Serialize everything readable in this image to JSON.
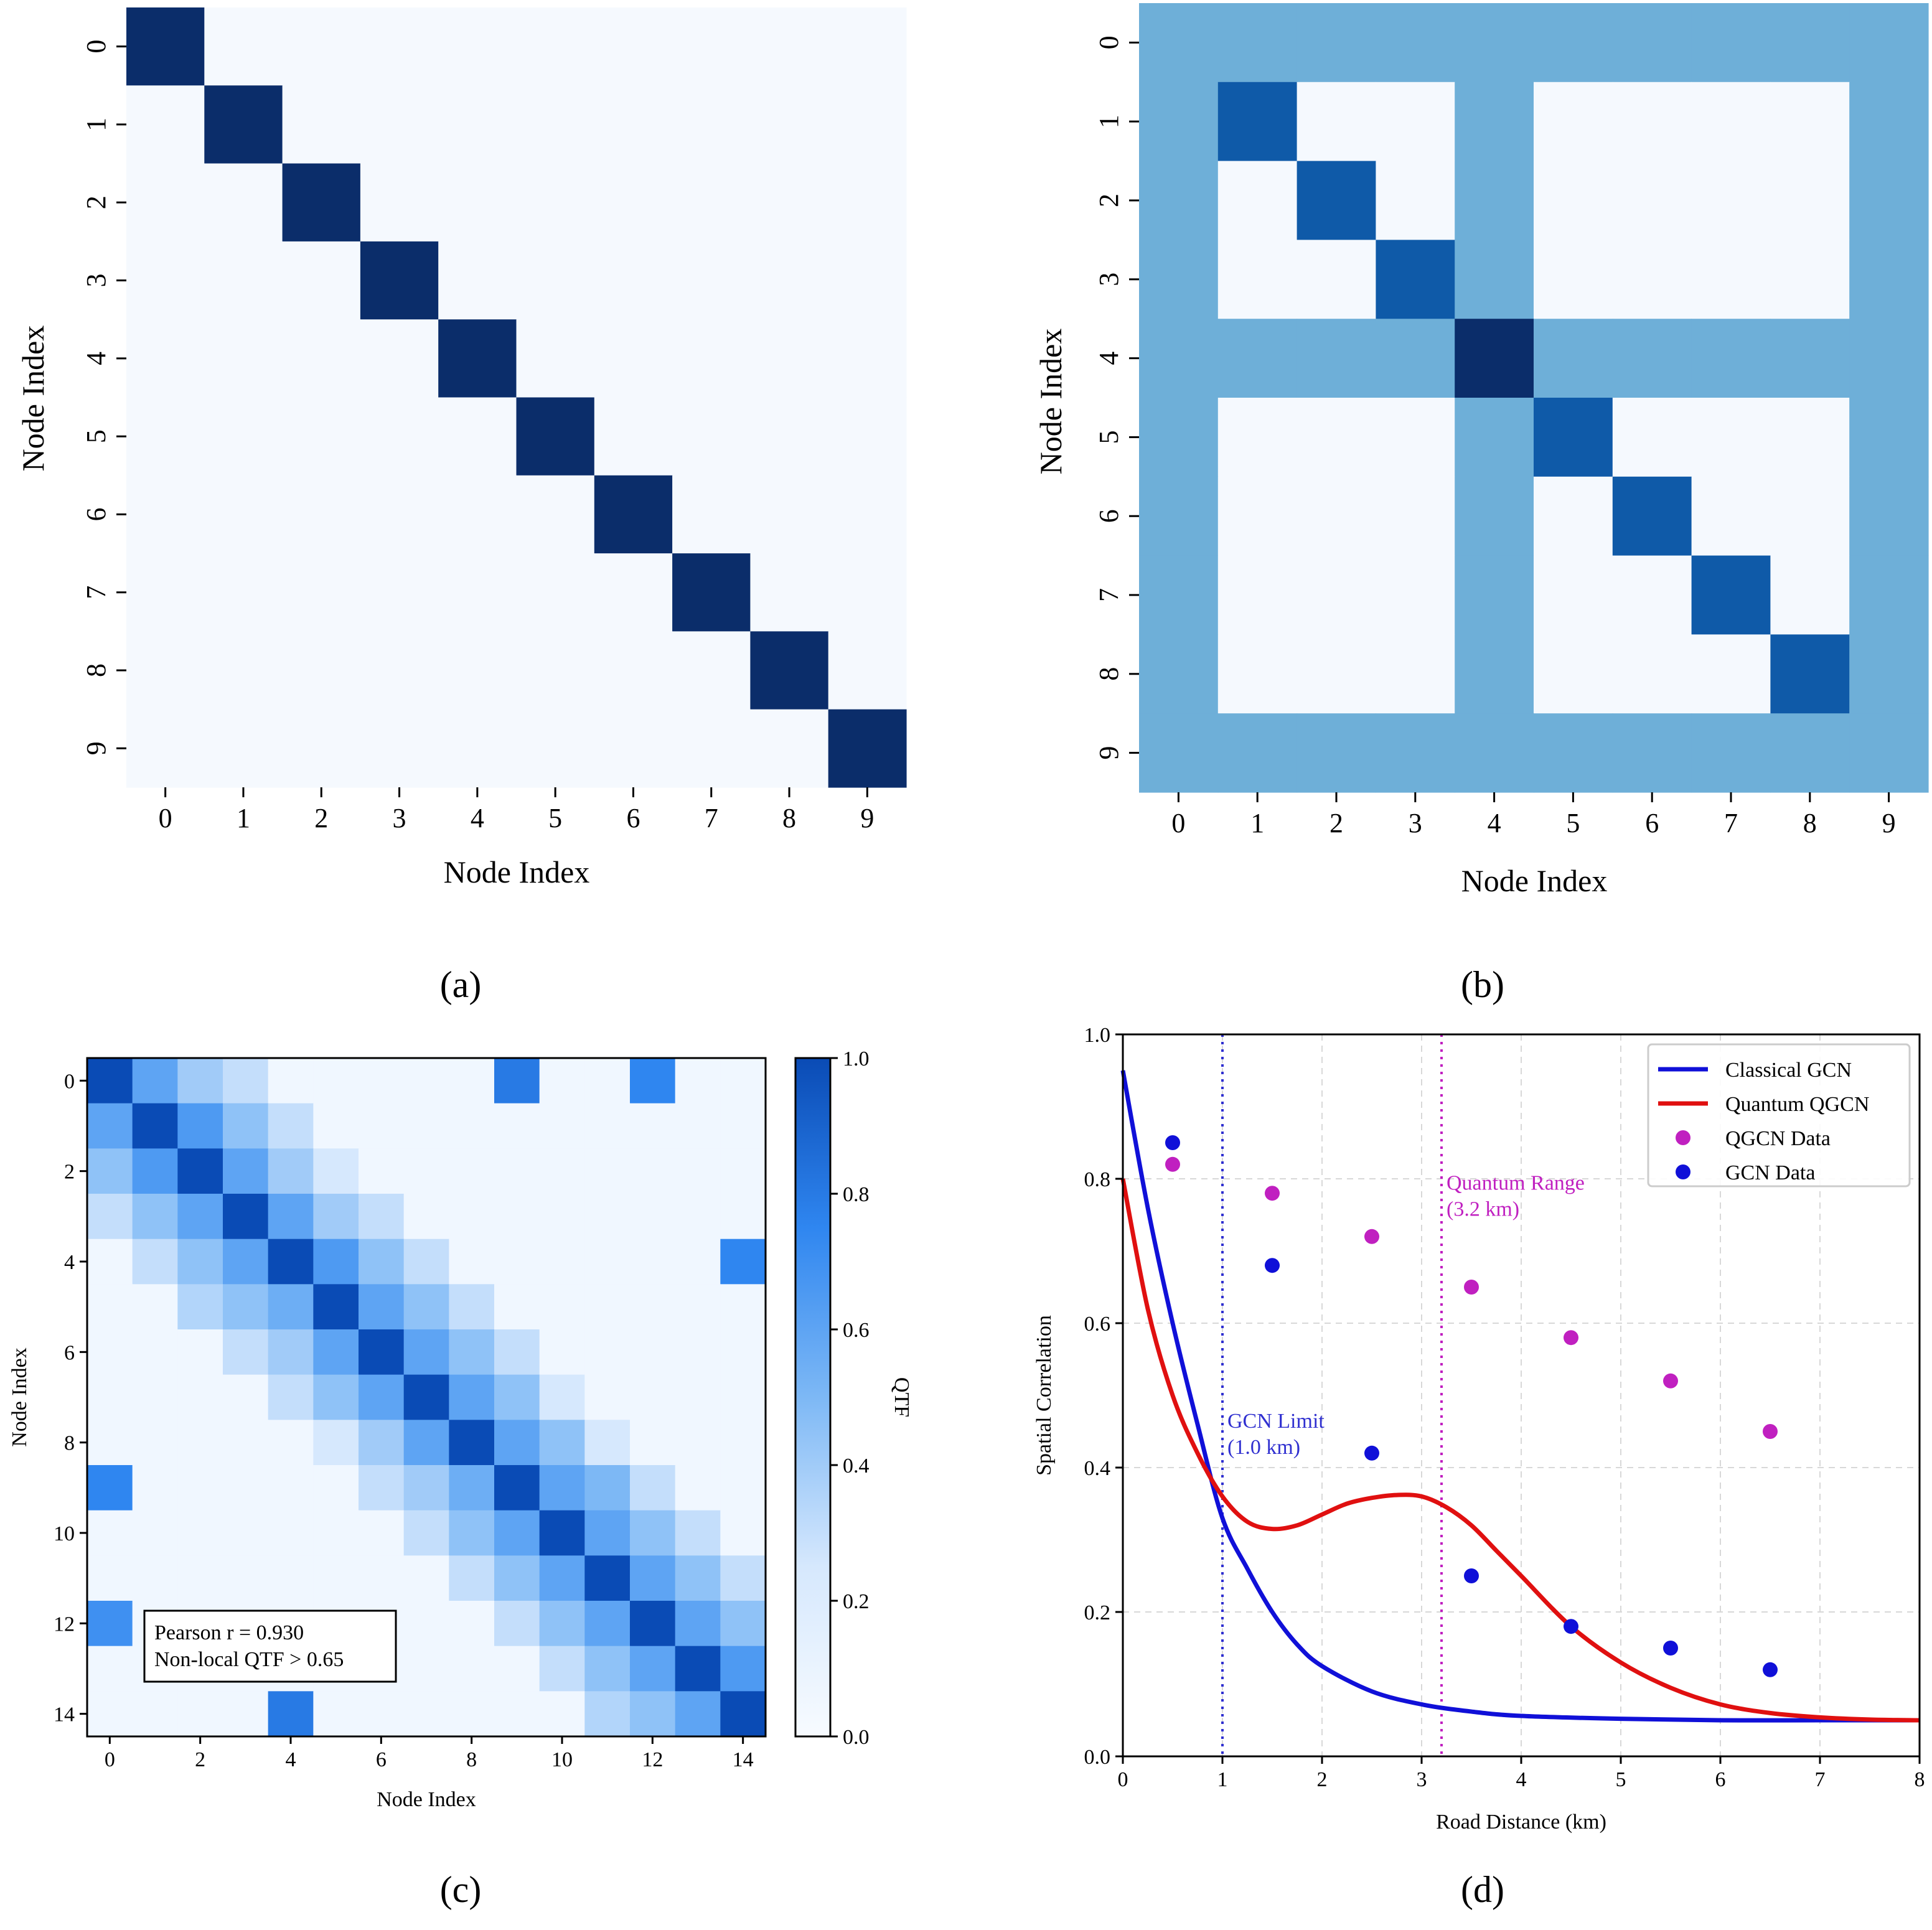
{
  "figure": {
    "panel_tags": [
      "(a)",
      "(b)",
      "(c)",
      "(d)"
    ]
  },
  "chart_data": [
    {
      "panel": "(a)",
      "type": "heatmap",
      "xlabel": "Node Index",
      "ylabel": "Node Index",
      "x_ticks": [
        "0",
        "1",
        "2",
        "3",
        "4",
        "5",
        "6",
        "7",
        "8",
        "9"
      ],
      "y_ticks": [
        "0",
        "1",
        "2",
        "3",
        "4",
        "5",
        "6",
        "7",
        "8",
        "9"
      ],
      "matrix": [
        [
          1,
          0,
          0,
          0,
          0,
          0,
          0,
          0,
          0,
          0
        ],
        [
          0,
          1,
          0,
          0,
          0,
          0,
          0,
          0,
          0,
          0
        ],
        [
          0,
          0,
          1,
          0,
          0,
          0,
          0,
          0,
          0,
          0
        ],
        [
          0,
          0,
          0,
          1,
          0,
          0,
          0,
          0,
          0,
          0
        ],
        [
          0,
          0,
          0,
          0,
          1,
          0,
          0,
          0,
          0,
          0
        ],
        [
          0,
          0,
          0,
          0,
          0,
          1,
          0,
          0,
          0,
          0
        ],
        [
          0,
          0,
          0,
          0,
          0,
          0,
          1,
          0,
          0,
          0
        ],
        [
          0,
          0,
          0,
          0,
          0,
          0,
          0,
          1,
          0,
          0
        ],
        [
          0,
          0,
          0,
          0,
          0,
          0,
          0,
          0,
          1,
          0
        ],
        [
          0,
          0,
          0,
          0,
          0,
          0,
          0,
          0,
          0,
          1
        ]
      ],
      "colorscale": "Blues",
      "vmin": 0,
      "vmax": 1
    },
    {
      "panel": "(b)",
      "type": "heatmap",
      "xlabel": "Node Index",
      "ylabel": "Node Index",
      "x_ticks": [
        "0",
        "1",
        "2",
        "3",
        "4",
        "5",
        "6",
        "7",
        "8",
        "9"
      ],
      "y_ticks": [
        "0",
        "1",
        "2",
        "3",
        "4",
        "5",
        "6",
        "7",
        "8",
        "9"
      ],
      "matrix": [
        [
          0.5,
          0.5,
          0.5,
          0.5,
          0.5,
          0.5,
          0.5,
          0.5,
          0.5,
          0.5
        ],
        [
          0.5,
          0.8,
          0,
          0,
          0.5,
          0,
          0,
          0,
          0,
          0.5
        ],
        [
          0.5,
          0,
          0.8,
          0,
          0.5,
          0,
          0,
          0,
          0,
          0.5
        ],
        [
          0.5,
          0,
          0,
          0.8,
          0.5,
          0,
          0,
          0,
          0,
          0.5
        ],
        [
          0.5,
          0.5,
          0.5,
          0.5,
          1,
          0.5,
          0.5,
          0.5,
          0.5,
          0.5
        ],
        [
          0.5,
          0,
          0,
          0,
          0.5,
          0.8,
          0,
          0,
          0,
          0.5
        ],
        [
          0.5,
          0,
          0,
          0,
          0.5,
          0,
          0.8,
          0,
          0,
          0.5
        ],
        [
          0.5,
          0,
          0,
          0,
          0.5,
          0,
          0,
          0.8,
          0,
          0.5
        ],
        [
          0.5,
          0,
          0,
          0,
          0.5,
          0,
          0,
          0,
          0.8,
          0.5
        ],
        [
          0.5,
          0.5,
          0.5,
          0.5,
          0.5,
          0.5,
          0.5,
          0.5,
          0.5,
          0.5
        ]
      ],
      "colorscale": "Blues",
      "vmin": 0,
      "vmax": 1
    },
    {
      "panel": "(c)",
      "type": "heatmap",
      "xlabel": "Node Index",
      "ylabel": "Node Index",
      "colorbar_label": "QTF",
      "colorbar_ticks": [
        "0.0",
        "0.2",
        "0.4",
        "0.6",
        "0.8",
        "1.0"
      ],
      "x_ticks": [
        "0",
        "2",
        "4",
        "6",
        "8",
        "10",
        "12",
        "14"
      ],
      "y_ticks": [
        "0",
        "2",
        "4",
        "6",
        "8",
        "10",
        "12",
        "14"
      ],
      "annotation_lines": [
        "Pearson r = 0.930",
        "Non-local QTF > 0.65"
      ],
      "vmin": 0,
      "vmax": 1,
      "matrix": [
        [
          1,
          0.6,
          0.4,
          0.3,
          0.05,
          0.05,
          0.05,
          0.05,
          0.05,
          0.8,
          0.05,
          0.05,
          0.75,
          0.05,
          0.05
        ],
        [
          0.6,
          1,
          0.65,
          0.45,
          0.3,
          0.05,
          0.05,
          0.05,
          0.05,
          0.05,
          0.05,
          0.05,
          0.05,
          0.05,
          0.05
        ],
        [
          0.45,
          0.65,
          1,
          0.6,
          0.4,
          0.25,
          0.05,
          0.05,
          0.05,
          0.05,
          0.05,
          0.05,
          0.05,
          0.05,
          0.05
        ],
        [
          0.3,
          0.45,
          0.6,
          1,
          0.6,
          0.4,
          0.3,
          0.05,
          0.05,
          0.05,
          0.05,
          0.05,
          0.05,
          0.05,
          0.05
        ],
        [
          0.05,
          0.3,
          0.45,
          0.6,
          1,
          0.65,
          0.45,
          0.3,
          0.05,
          0.05,
          0.05,
          0.05,
          0.05,
          0.05,
          0.75
        ],
        [
          0.05,
          0.05,
          0.35,
          0.45,
          0.55,
          1,
          0.6,
          0.45,
          0.3,
          0.05,
          0.05,
          0.05,
          0.05,
          0.05,
          0.05
        ],
        [
          0.05,
          0.05,
          0.05,
          0.3,
          0.4,
          0.6,
          1,
          0.6,
          0.45,
          0.3,
          0.05,
          0.05,
          0.05,
          0.05,
          0.05
        ],
        [
          0.05,
          0.05,
          0.05,
          0.05,
          0.3,
          0.45,
          0.6,
          1,
          0.6,
          0.45,
          0.25,
          0.05,
          0.05,
          0.05,
          0.05
        ],
        [
          0.05,
          0.05,
          0.05,
          0.05,
          0.05,
          0.25,
          0.4,
          0.6,
          1,
          0.6,
          0.45,
          0.25,
          0.05,
          0.05,
          0.05
        ],
        [
          0.75,
          0.05,
          0.05,
          0.05,
          0.05,
          0.05,
          0.3,
          0.4,
          0.55,
          1,
          0.6,
          0.5,
          0.3,
          0.05,
          0.05
        ],
        [
          0.05,
          0.05,
          0.05,
          0.05,
          0.05,
          0.05,
          0.05,
          0.3,
          0.45,
          0.6,
          1,
          0.6,
          0.45,
          0.3,
          0.05
        ],
        [
          0.05,
          0.05,
          0.05,
          0.05,
          0.05,
          0.05,
          0.05,
          0.05,
          0.3,
          0.45,
          0.6,
          1,
          0.6,
          0.45,
          0.3
        ],
        [
          0.7,
          0.05,
          0.05,
          0.05,
          0.05,
          0.05,
          0.05,
          0.05,
          0.05,
          0.3,
          0.45,
          0.6,
          1,
          0.6,
          0.45
        ],
        [
          0.05,
          0.05,
          0.05,
          0.05,
          0.05,
          0.05,
          0.05,
          0.05,
          0.05,
          0.05,
          0.3,
          0.45,
          0.6,
          1,
          0.65
        ],
        [
          0.05,
          0.05,
          0.05,
          0.05,
          0.8,
          0.05,
          0.05,
          0.05,
          0.05,
          0.05,
          0.05,
          0.35,
          0.45,
          0.6,
          1
        ]
      ]
    },
    {
      "panel": "(d)",
      "type": "line",
      "xlabel": "Road Distance (km)",
      "ylabel": "Spatial Correlation",
      "xlim": [
        0,
        8
      ],
      "ylim": [
        0,
        1
      ],
      "x_ticks": [
        "0",
        "1",
        "2",
        "3",
        "4",
        "5",
        "6",
        "7",
        "8"
      ],
      "y_ticks": [
        "0.0",
        "0.2",
        "0.4",
        "0.6",
        "0.8",
        "1.0"
      ],
      "grid": true,
      "legend_position": "top-right",
      "series": [
        {
          "name": "Classical GCN",
          "kind": "line",
          "color": "#1010d8",
          "x": [
            0,
            0.25,
            0.5,
            0.75,
            1,
            1.25,
            1.5,
            1.75,
            2,
            2.5,
            3,
            3.5,
            4,
            5,
            6,
            7,
            8
          ],
          "y": [
            0.95,
            0.76,
            0.6,
            0.46,
            0.33,
            0.26,
            0.2,
            0.155,
            0.125,
            0.09,
            0.072,
            0.062,
            0.056,
            0.052,
            0.05,
            0.05,
            0.05
          ]
        },
        {
          "name": "Quantum QGCN",
          "kind": "line",
          "color": "#e01010",
          "x": [
            0,
            0.25,
            0.5,
            0.75,
            1,
            1.25,
            1.5,
            1.75,
            2,
            2.25,
            2.5,
            2.75,
            3,
            3.25,
            3.5,
            3.75,
            4,
            4.5,
            5,
            5.5,
            6,
            6.5,
            7,
            7.5,
            8
          ],
          "y": [
            0.8,
            0.62,
            0.5,
            0.42,
            0.36,
            0.325,
            0.315,
            0.32,
            0.335,
            0.35,
            0.358,
            0.362,
            0.36,
            0.345,
            0.32,
            0.285,
            0.25,
            0.18,
            0.13,
            0.095,
            0.072,
            0.06,
            0.054,
            0.051,
            0.05
          ]
        },
        {
          "name": "QGCN Data",
          "kind": "scatter",
          "color": "#c020c0",
          "x": [
            0.5,
            1.5,
            2.5,
            3.5,
            4.5,
            5.5,
            6.5
          ],
          "y": [
            0.82,
            0.78,
            0.72,
            0.65,
            0.58,
            0.52,
            0.45
          ]
        },
        {
          "name": "GCN Data",
          "kind": "scatter",
          "color": "#1010d8",
          "x": [
            0.5,
            1.5,
            2.5,
            3.5,
            4.5,
            5.5,
            6.5
          ],
          "y": [
            0.85,
            0.68,
            0.42,
            0.25,
            0.18,
            0.15,
            0.12
          ]
        }
      ],
      "vlines": [
        {
          "x": 1.0,
          "color": "#3030d0",
          "label_lines": [
            "GCN Limit",
            "(1.0 km)"
          ]
        },
        {
          "x": 3.2,
          "color": "#c020c0",
          "label_lines": [
            "Quantum Range",
            "(3.2 km)"
          ]
        }
      ]
    }
  ]
}
